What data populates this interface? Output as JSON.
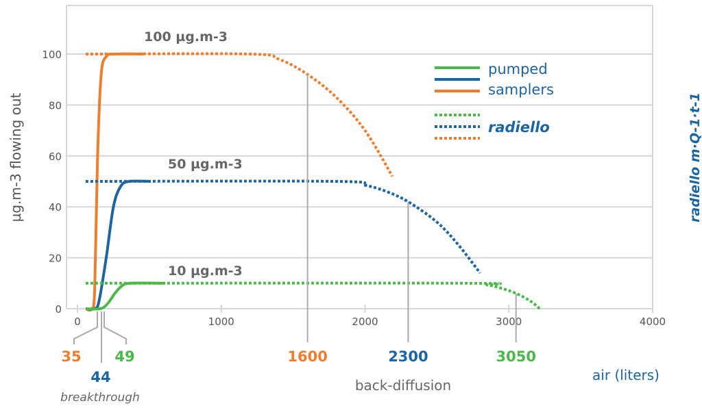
{
  "chart_data": {
    "type": "line",
    "ylabel": "µg.m-3 flowing out",
    "y2label": "radiello m·Q-1·t-1",
    "xlabel": "air (liters)",
    "xlim": [
      0,
      4000
    ],
    "ylim": [
      0,
      120
    ],
    "xticks": [
      "0",
      "1000",
      "2000",
      "3000",
      "4000"
    ],
    "yticks": [
      "0",
      "20",
      "40",
      "60",
      "80",
      "100"
    ],
    "grid": true,
    "legend": {
      "placement": "top-right",
      "entries": [
        {
          "label": "pumped samplers",
          "style": "solid"
        },
        {
          "label": "radiello",
          "style": "dotted"
        }
      ]
    },
    "colors": {
      "orange": "#ef7d2d",
      "blue": "#1b65a0",
      "green": "#4cb848",
      "grid": "#d6d6d6",
      "text": "#555555"
    },
    "level_labels": [
      {
        "text": "100 µg.m-3",
        "y": 100
      },
      {
        "text": "50 µg.m-3",
        "y": 50
      },
      {
        "text": "10 µg.m-3",
        "y": 10
      }
    ],
    "series": [
      {
        "color": "orange",
        "style": "solid",
        "points": [
          [
            57,
            0
          ],
          [
            100,
            0
          ],
          [
            120,
            8
          ],
          [
            140,
            60
          ],
          [
            165,
            92
          ],
          [
            200,
            99
          ],
          [
            260,
            100
          ],
          [
            460,
            100
          ]
        ]
      },
      {
        "color": "blue",
        "style": "solid",
        "points": [
          [
            57,
            0
          ],
          [
            120,
            0
          ],
          [
            150,
            3
          ],
          [
            200,
            20
          ],
          [
            250,
            40
          ],
          [
            300,
            48
          ],
          [
            360,
            50
          ],
          [
            510,
            50
          ]
        ]
      },
      {
        "color": "green",
        "style": "solid",
        "points": [
          [
            57,
            0
          ],
          [
            160,
            0
          ],
          [
            210,
            2
          ],
          [
            260,
            6
          ],
          [
            310,
            9
          ],
          [
            370,
            10
          ],
          [
            610,
            10
          ]
        ]
      },
      {
        "color": "orange",
        "style": "dotted",
        "points": [
          [
            57,
            100
          ],
          [
            1200,
            100
          ],
          [
            1400,
            98
          ],
          [
            1600,
            92
          ],
          [
            1800,
            83
          ],
          [
            2000,
            70
          ],
          [
            2190,
            52
          ]
        ]
      },
      {
        "color": "blue",
        "style": "dotted",
        "points": [
          [
            57,
            50
          ],
          [
            1800,
            50
          ],
          [
            2000,
            48.5
          ],
          [
            2150,
            46
          ],
          [
            2300,
            42
          ],
          [
            2500,
            34
          ],
          [
            2650,
            25
          ],
          [
            2800,
            14
          ]
        ]
      },
      {
        "color": "green",
        "style": "dotted",
        "points": [
          [
            57,
            10
          ],
          [
            2700,
            10
          ],
          [
            2850,
            9.3
          ],
          [
            2950,
            8
          ],
          [
            3050,
            6
          ],
          [
            3150,
            3
          ],
          [
            3215,
            0
          ]
        ]
      }
    ],
    "markers": {
      "breakthrough": {
        "label": "breakthrough",
        "values": [
          {
            "text": "35",
            "color": "orange"
          },
          {
            "text": "44",
            "color": "blue"
          },
          {
            "text": "49",
            "color": "green"
          }
        ]
      },
      "back_diffusion": {
        "label": "back-diffusion",
        "values": [
          {
            "text": "1600",
            "x": 1600,
            "y": 92,
            "color": "orange"
          },
          {
            "text": "2300",
            "x": 2300,
            "y": 42,
            "color": "blue"
          },
          {
            "text": "3050",
            "x": 3050,
            "y": 6,
            "color": "green"
          }
        ]
      }
    }
  }
}
